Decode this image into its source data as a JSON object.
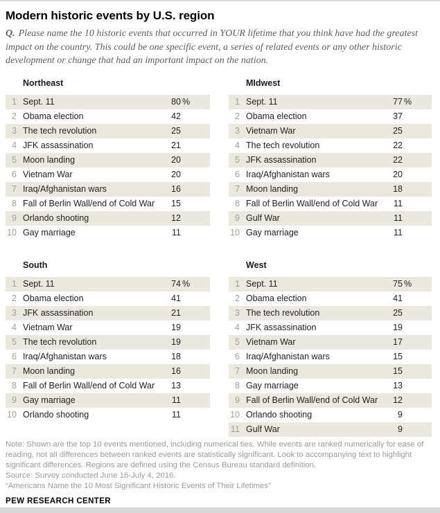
{
  "header": {
    "title": "Modern historic events by U.S. region",
    "question_label": "Q.",
    "question_text": "Please name the 10 historic events that occurred in YOUR lifetime that you think have had the greatest impact on the country. This could be one specific event, a series of related events or any other historic development or change that had an important impact on the nation."
  },
  "chart_data": {
    "type": "table",
    "title": "Modern historic events by U.S. region",
    "layout": "2x2-grid",
    "value_unit": "%",
    "columns": [
      "rank",
      "event",
      "percent"
    ],
    "tables": [
      {
        "region": "Northeast",
        "rows": [
          {
            "rank": 1,
            "event": "Sept. 11",
            "value": 80,
            "percent_sign": true
          },
          {
            "rank": 2,
            "event": "Obama election",
            "value": 42
          },
          {
            "rank": 3,
            "event": "The tech revolution",
            "value": 25
          },
          {
            "rank": 4,
            "event": "JFK assassination",
            "value": 21
          },
          {
            "rank": 5,
            "event": "Moon landing",
            "value": 20
          },
          {
            "rank": 6,
            "event": "Vietnam War",
            "value": 20
          },
          {
            "rank": 7,
            "event": "Iraq/Afghanistan wars",
            "value": 16
          },
          {
            "rank": 8,
            "event": "Fall of Berlin Wall/end of Cold War",
            "value": 15
          },
          {
            "rank": 9,
            "event": "Orlando shooting",
            "value": 12
          },
          {
            "rank": 10,
            "event": "Gay marriage",
            "value": 11
          }
        ]
      },
      {
        "region": "MIdwest",
        "rows": [
          {
            "rank": 1,
            "event": "Sept. 11",
            "value": 77,
            "percent_sign": true
          },
          {
            "rank": 2,
            "event": "Obama election",
            "value": 37
          },
          {
            "rank": 3,
            "event": "Vietnam War",
            "value": 25
          },
          {
            "rank": 4,
            "event": "The tech revolution",
            "value": 22
          },
          {
            "rank": 5,
            "event": "JFK assassination",
            "value": 22
          },
          {
            "rank": 6,
            "event": "Iraq/Afghanistan wars",
            "value": 20
          },
          {
            "rank": 7,
            "event": "Moon landing",
            "value": 18
          },
          {
            "rank": 8,
            "event": "Fall of Berlin Wall/end of Cold War",
            "value": 11
          },
          {
            "rank": 9,
            "event": "Gulf War",
            "value": 11
          },
          {
            "rank": 10,
            "event": "Gay marriage",
            "value": 11
          }
        ]
      },
      {
        "region": "South",
        "rows": [
          {
            "rank": 1,
            "event": "Sept. 11",
            "value": 74,
            "percent_sign": true
          },
          {
            "rank": 2,
            "event": "Obama election",
            "value": 41
          },
          {
            "rank": 3,
            "event": "JFK assassination",
            "value": 21
          },
          {
            "rank": 4,
            "event": "Vietnam War",
            "value": 19
          },
          {
            "rank": 5,
            "event": "The tech revolution",
            "value": 19
          },
          {
            "rank": 6,
            "event": "Iraq/Afghanistan wars",
            "value": 18
          },
          {
            "rank": 7,
            "event": "Moon landing",
            "value": 16
          },
          {
            "rank": 8,
            "event": "Fall of Berlin Wall/end of Cold War",
            "value": 13
          },
          {
            "rank": 9,
            "event": "Gay marriage",
            "value": 11
          },
          {
            "rank": 10,
            "event": "Orlando shooting",
            "value": 11
          }
        ]
      },
      {
        "region": "West",
        "rows": [
          {
            "rank": 1,
            "event": "Sept. 11",
            "value": 75,
            "percent_sign": true
          },
          {
            "rank": 2,
            "event": "Obama election",
            "value": 41
          },
          {
            "rank": 3,
            "event": "The tech revolution",
            "value": 25
          },
          {
            "rank": 4,
            "event": "JFK assassination",
            "value": 19
          },
          {
            "rank": 5,
            "event": "Vietnam War",
            "value": 17
          },
          {
            "rank": 6,
            "event": "Iraq/Afghanistan wars",
            "value": 15
          },
          {
            "rank": 7,
            "event": "Moon landing",
            "value": 15
          },
          {
            "rank": 8,
            "event": "Gay marriage",
            "value": 13
          },
          {
            "rank": 9,
            "event": "Fall of Berlin Wall/end of Cold War",
            "value": 12
          },
          {
            "rank": 10,
            "event": "Orlando shooting",
            "value": 9
          },
          {
            "rank": 11,
            "event": "Gulf War",
            "value": 9
          }
        ]
      }
    ]
  },
  "footer": {
    "note": "Note: Shown are the top 10 events mentioned, including numerical ties. While events are ranked numerically for ease of reading, not all differences between ranked events are statistically significant. Look to accompanying text to highlight significant differences. Regions are defined using the Census Bureau standard definition.",
    "source": "Source: Survey conducted June 16-July 4, 2016.",
    "quote": "“Americans Name the 10 Most Significant Historic Events of Their Lifetimes”",
    "brand": "PEW RESEARCH CENTER"
  },
  "colors": {
    "stripe": "#ebe8df",
    "rank": "#a0a09a",
    "text": "#222222",
    "muted": "#9b9b9b",
    "divider": "#d9d9d9"
  }
}
